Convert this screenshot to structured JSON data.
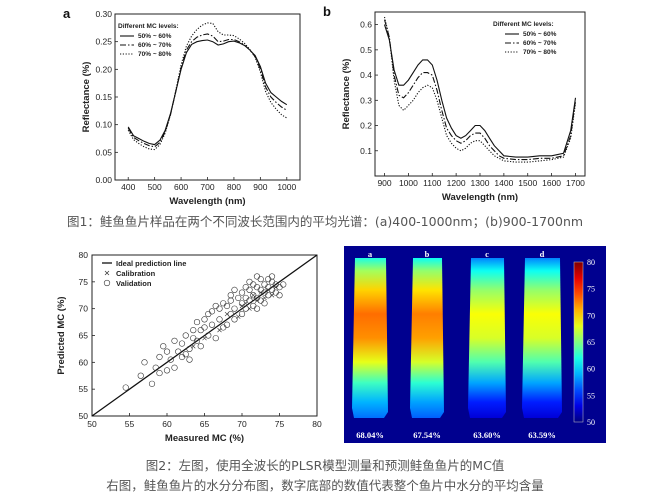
{
  "captions": {
    "fig1": "图1：鲑鱼鱼片样品在两个不同波长范围内的平均光谱：(a)400-1000nm；(b)900-1700nm",
    "fig2_line1": "图2：左图，使用全波长的PLSR模型测量和预测鲑鱼鱼片的MC值",
    "fig2_line2": "右图，鲑鱼鱼片的水分分布图，数字底部的数值代表整个鱼片中水分的平均含量"
  },
  "chart_data": [
    {
      "id": "a",
      "type": "line",
      "panel_label": "a",
      "xlabel": "Wavelength (nm)",
      "ylabel": "Reflectance (%)",
      "xlim": [
        350,
        1050
      ],
      "ylim": [
        0.0,
        0.3
      ],
      "xticks": [
        400,
        500,
        600,
        700,
        800,
        900,
        1000
      ],
      "yticks": [
        0.0,
        0.05,
        0.1,
        0.15,
        0.2,
        0.25,
        0.3
      ],
      "ytick_labels": [
        "0.00",
        "0.05",
        "0.10",
        "0.15",
        "0.20",
        "0.25",
        "0.30"
      ],
      "legend_title": "Different MC levels:",
      "legend_position": "top-left",
      "x": [
        400,
        420,
        440,
        460,
        480,
        500,
        520,
        540,
        560,
        580,
        600,
        620,
        640,
        660,
        680,
        700,
        720,
        740,
        760,
        780,
        800,
        820,
        840,
        860,
        880,
        900,
        920,
        940,
        960,
        980,
        1000
      ],
      "series": [
        {
          "name": "50% ~ 60%",
          "dash": "solid",
          "values": [
            0.096,
            0.08,
            0.075,
            0.07,
            0.066,
            0.064,
            0.072,
            0.09,
            0.12,
            0.16,
            0.2,
            0.23,
            0.245,
            0.25,
            0.252,
            0.253,
            0.25,
            0.244,
            0.246,
            0.25,
            0.251,
            0.248,
            0.243,
            0.235,
            0.225,
            0.205,
            0.175,
            0.158,
            0.15,
            0.142,
            0.136
          ]
        },
        {
          "name": "60% ~ 70%",
          "dash": "dashdot",
          "values": [
            0.094,
            0.077,
            0.071,
            0.066,
            0.062,
            0.06,
            0.068,
            0.087,
            0.118,
            0.16,
            0.203,
            0.235,
            0.25,
            0.258,
            0.262,
            0.264,
            0.26,
            0.25,
            0.251,
            0.254,
            0.254,
            0.25,
            0.244,
            0.235,
            0.223,
            0.2,
            0.168,
            0.15,
            0.14,
            0.132,
            0.126
          ]
        },
        {
          "name": "70% ~ 80%",
          "dash": "dotted",
          "values": [
            0.09,
            0.073,
            0.066,
            0.06,
            0.056,
            0.055,
            0.064,
            0.085,
            0.118,
            0.162,
            0.208,
            0.242,
            0.26,
            0.272,
            0.28,
            0.284,
            0.283,
            0.268,
            0.262,
            0.262,
            0.261,
            0.255,
            0.247,
            0.236,
            0.222,
            0.195,
            0.16,
            0.14,
            0.128,
            0.118,
            0.112
          ]
        }
      ]
    },
    {
      "id": "b",
      "type": "line",
      "panel_label": "b",
      "xlabel": "Wavelength (nm)",
      "ylabel": "Reflectance (%)",
      "xlim": [
        860,
        1740
      ],
      "ylim": [
        0.0,
        0.65
      ],
      "xticks": [
        900,
        1000,
        1100,
        1200,
        1300,
        1400,
        1500,
        1600,
        1700
      ],
      "yticks": [
        0.1,
        0.2,
        0.3,
        0.4,
        0.5,
        0.6
      ],
      "ytick_labels": [
        "0.1",
        "0.2",
        "0.3",
        "0.4",
        "0.5",
        "0.6"
      ],
      "legend_title": "Different MC levels:",
      "legend_position": "top-right",
      "x": [
        900,
        920,
        940,
        960,
        980,
        1000,
        1020,
        1040,
        1060,
        1080,
        1100,
        1120,
        1140,
        1160,
        1180,
        1200,
        1220,
        1240,
        1260,
        1280,
        1300,
        1320,
        1340,
        1360,
        1380,
        1400,
        1450,
        1500,
        1550,
        1600,
        1650,
        1680,
        1700
      ],
      "series": [
        {
          "name": "50% ~ 60%",
          "dash": "solid",
          "values": [
            0.6,
            0.54,
            0.42,
            0.36,
            0.36,
            0.38,
            0.41,
            0.44,
            0.46,
            0.46,
            0.44,
            0.38,
            0.3,
            0.23,
            0.19,
            0.16,
            0.15,
            0.16,
            0.18,
            0.2,
            0.2,
            0.18,
            0.15,
            0.12,
            0.1,
            0.08,
            0.075,
            0.075,
            0.08,
            0.08,
            0.09,
            0.18,
            0.31
          ]
        },
        {
          "name": "60% ~ 70%",
          "dash": "dashdot",
          "values": [
            0.62,
            0.55,
            0.4,
            0.32,
            0.31,
            0.33,
            0.36,
            0.39,
            0.41,
            0.41,
            0.4,
            0.34,
            0.26,
            0.19,
            0.16,
            0.14,
            0.13,
            0.14,
            0.16,
            0.17,
            0.17,
            0.15,
            0.12,
            0.1,
            0.08,
            0.07,
            0.065,
            0.065,
            0.07,
            0.07,
            0.08,
            0.16,
            0.3
          ]
        },
        {
          "name": "70% ~ 80%",
          "dash": "dotted",
          "values": [
            0.63,
            0.55,
            0.38,
            0.28,
            0.26,
            0.28,
            0.3,
            0.33,
            0.35,
            0.36,
            0.35,
            0.3,
            0.23,
            0.16,
            0.13,
            0.11,
            0.1,
            0.11,
            0.13,
            0.14,
            0.14,
            0.12,
            0.1,
            0.08,
            0.07,
            0.06,
            0.055,
            0.055,
            0.06,
            0.065,
            0.075,
            0.15,
            0.29
          ]
        }
      ]
    },
    {
      "id": "scatter",
      "type": "scatter",
      "xlabel": "Measured MC (%)",
      "ylabel": "Predicted MC (%)",
      "xlim": [
        50,
        80
      ],
      "ylim": [
        50,
        80
      ],
      "xticks": [
        50,
        55,
        60,
        65,
        70,
        75,
        80
      ],
      "yticks": [
        50,
        55,
        60,
        65,
        70,
        75,
        80
      ],
      "legend_position": "top-left",
      "ideal_line": {
        "name": "Ideal prediction line",
        "x": [
          50,
          80
        ],
        "y": [
          50,
          80
        ]
      },
      "series": [
        {
          "name": "Calibration",
          "marker": "x",
          "points": [
            [
              63.5,
              63.0
            ],
            [
              65.0,
              64.5
            ],
            [
              67.0,
              66.0
            ],
            [
              68.0,
              69.0
            ],
            [
              69.5,
              68.5
            ],
            [
              70.0,
              70.5
            ],
            [
              71.0,
              70.0
            ],
            [
              72.0,
              71.5
            ],
            [
              72.5,
              73.0
            ],
            [
              73.0,
              72.0
            ],
            [
              73.5,
              73.5
            ],
            [
              74.0,
              72.5
            ],
            [
              74.5,
              74.0
            ],
            [
              71.5,
              72.5
            ],
            [
              70.5,
              71.0
            ]
          ]
        },
        {
          "name": "Validation",
          "marker": "circle",
          "points": [
            [
              54.5,
              55.3
            ],
            [
              56.5,
              57.5
            ],
            [
              57.0,
              60.0
            ],
            [
              58.0,
              56.0
            ],
            [
              58.5,
              59.0
            ],
            [
              59.0,
              61.0
            ],
            [
              59.5,
              63.0
            ],
            [
              60.0,
              58.5
            ],
            [
              60.5,
              60.5
            ],
            [
              61.0,
              64.0
            ],
            [
              61.5,
              62.0
            ],
            [
              62.0,
              61.0
            ],
            [
              62.0,
              63.5
            ],
            [
              62.5,
              65.0
            ],
            [
              63.0,
              60.5
            ],
            [
              63.0,
              62.5
            ],
            [
              63.5,
              66.0
            ],
            [
              64.0,
              64.0
            ],
            [
              64.0,
              67.5
            ],
            [
              64.5,
              63.0
            ],
            [
              65.0,
              66.5
            ],
            [
              65.0,
              68.0
            ],
            [
              65.5,
              65.0
            ],
            [
              66.0,
              67.0
            ],
            [
              66.0,
              69.5
            ],
            [
              66.5,
              64.5
            ],
            [
              67.0,
              68.0
            ],
            [
              67.0,
              70.0
            ],
            [
              67.5,
              66.5
            ],
            [
              68.0,
              67.0
            ],
            [
              68.0,
              70.5
            ],
            [
              68.5,
              69.0
            ],
            [
              68.5,
              71.5
            ],
            [
              69.0,
              68.0
            ],
            [
              69.0,
              70.0
            ],
            [
              69.5,
              72.0
            ],
            [
              70.0,
              69.0
            ],
            [
              70.0,
              71.0
            ],
            [
              70.0,
              73.0
            ],
            [
              70.5,
              70.0
            ],
            [
              70.5,
              72.0
            ],
            [
              71.0,
              71.5
            ],
            [
              71.0,
              73.5
            ],
            [
              71.5,
              70.5
            ],
            [
              71.5,
              72.5
            ],
            [
              72.0,
              72.0
            ],
            [
              72.0,
              74.0
            ],
            [
              72.0,
              70.0
            ],
            [
              72.5,
              71.5
            ],
            [
              72.5,
              73.5
            ],
            [
              73.0,
              73.0
            ],
            [
              73.0,
              74.5
            ],
            [
              73.0,
              71.0
            ],
            [
              73.5,
              72.5
            ],
            [
              73.5,
              74.0
            ],
            [
              74.0,
              73.5
            ],
            [
              74.0,
              75.0
            ],
            [
              74.5,
              73.0
            ],
            [
              74.5,
              74.5
            ],
            [
              75.0,
              74.0
            ],
            [
              75.0,
              72.5
            ],
            [
              75.5,
              74.5
            ],
            [
              69.0,
              73.5
            ],
            [
              67.5,
              71.0
            ],
            [
              66.5,
              70.5
            ],
            [
              71.0,
              75.0
            ],
            [
              72.5,
              75.5
            ],
            [
              70.5,
              74.0
            ],
            [
              68.5,
              72.5
            ],
            [
              65.5,
              69.0
            ],
            [
              64.5,
              66.0
            ],
            [
              63.5,
              64.5
            ],
            [
              62.5,
              61.5
            ],
            [
              61.0,
              59.0
            ],
            [
              60.0,
              62.0
            ],
            [
              59.0,
              58.0
            ],
            [
              73.5,
              75.5
            ],
            [
              74.0,
              76.0
            ],
            [
              72.0,
              76.0
            ],
            [
              71.5,
              74.5
            ]
          ]
        }
      ]
    },
    {
      "id": "heatmap",
      "type": "heatmap",
      "panel_labels": [
        "a",
        "b",
        "c",
        "d"
      ],
      "mean_values": [
        "68.04%",
        "67.54%",
        "63.60%",
        "63.59%"
      ],
      "mean_moisture": [
        68.04,
        67.54,
        63.6,
        63.59
      ],
      "colorbar": {
        "min": 50,
        "max": 80,
        "ticks": [
          "80",
          "75",
          "70",
          "65",
          "60",
          "55",
          "50"
        ]
      },
      "background": "#00008f"
    }
  ]
}
